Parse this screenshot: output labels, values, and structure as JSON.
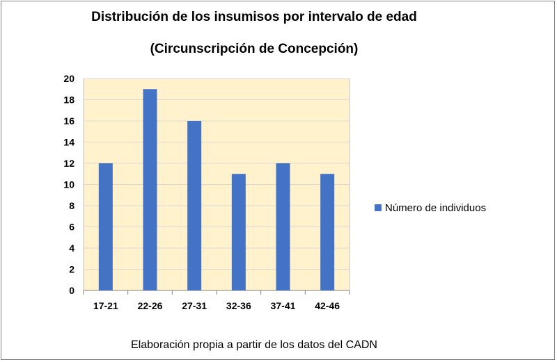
{
  "chart_data": {
    "type": "bar",
    "title": "Distribución de los insumisos por intervalo de edad",
    "subtitle": "(Circunscripción de Concepción)",
    "categories": [
      "17-21",
      "22-26",
      "27-31",
      "32-36",
      "37-41",
      "42-46"
    ],
    "series": [
      {
        "name": "Número de individuos",
        "values": [
          12,
          19,
          16,
          11,
          12,
          11
        ],
        "color": "#4472c4"
      }
    ],
    "yticks": [
      "0",
      "2",
      "4",
      "6",
      "8",
      "10",
      "12",
      "14",
      "16",
      "18",
      "20"
    ],
    "ylim": [
      0,
      20
    ],
    "grid": true,
    "legend": "right",
    "plot_background": "#fff2cc",
    "caption": "Elaboración propia a partir de los datos del CADN"
  }
}
